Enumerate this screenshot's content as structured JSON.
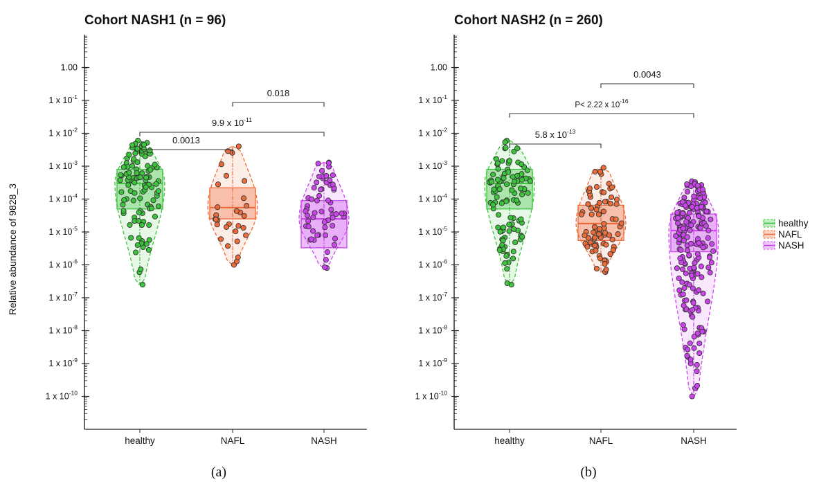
{
  "ylabel": "Relative abundance of 9828_3",
  "legend": [
    {
      "name": "healthy",
      "color": "#3cc43c"
    },
    {
      "name": "NAFL",
      "color": "#ee6c3a"
    },
    {
      "name": "NASH",
      "color": "#cc44ee"
    }
  ],
  "chart_data": [
    {
      "type": "box-violin-swarm",
      "title": "Cohort NASH1 (n = 96)",
      "panel_label": "(a)",
      "scale": "log",
      "ylim": [
        1e-11,
        10.0
      ],
      "yticks": [
        {
          "value": 1,
          "mantissa": "1.00",
          "exp": ""
        },
        {
          "value": 0.1,
          "mantissa": "1 x 10",
          "exp": "-1"
        },
        {
          "value": 0.01,
          "mantissa": "1 x 10",
          "exp": "-2"
        },
        {
          "value": 0.001,
          "mantissa": "1 x 10",
          "exp": "-3"
        },
        {
          "value": 0.0001,
          "mantissa": "1 x 10",
          "exp": "-4"
        },
        {
          "value": 1e-05,
          "mantissa": "1 x 10",
          "exp": "-5"
        },
        {
          "value": 1e-06,
          "mantissa": "1 x 10",
          "exp": "-6"
        },
        {
          "value": 1e-07,
          "mantissa": "1 x 10",
          "exp": "-7"
        },
        {
          "value": 1e-08,
          "mantissa": "1 x 10",
          "exp": "-8"
        },
        {
          "value": 1e-09,
          "mantissa": "1 x 10",
          "exp": "-9"
        },
        {
          "value": 1e-10,
          "mantissa": "1 x 10",
          "exp": "-10"
        }
      ],
      "categories": [
        "healthy",
        "NAFL",
        "NASH"
      ],
      "groups": [
        {
          "category": "healthy",
          "n_points": 110,
          "min": 2.5e-07,
          "max": 0.006,
          "q1": 5e-05,
          "median": 0.0003,
          "q3": 0.0008
        },
        {
          "category": "NAFL",
          "n_points": 30,
          "min": 1e-06,
          "max": 0.004,
          "q1": 2.5e-05,
          "median": 5.5e-05,
          "q3": 0.00022
        },
        {
          "category": "NASH",
          "n_points": 60,
          "min": 8e-07,
          "max": 0.0013,
          "q1": 3.3e-06,
          "median": 2.5e-05,
          "q3": 9e-05
        }
      ],
      "comparisons": [
        {
          "from": "healthy",
          "to": "NAFL",
          "p_label": "0.0013",
          "p_mantissa": "",
          "p_exp": ""
        },
        {
          "from": "healthy",
          "to": "NASH",
          "p_label": "",
          "p_mantissa": "9.9 x 10",
          "p_exp": "-11"
        },
        {
          "from": "NAFL",
          "to": "NASH",
          "p_label": "0.018",
          "p_mantissa": "",
          "p_exp": ""
        }
      ]
    },
    {
      "type": "box-violin-swarm",
      "title": "Cohort NASH2 (n = 260)",
      "panel_label": "(b)",
      "scale": "log",
      "ylim": [
        1e-11,
        10.0
      ],
      "yticks": [
        {
          "value": 1,
          "mantissa": "1.00",
          "exp": ""
        },
        {
          "value": 0.1,
          "mantissa": "1 x 10",
          "exp": "-1"
        },
        {
          "value": 0.01,
          "mantissa": "1 x 10",
          "exp": "-2"
        },
        {
          "value": 0.001,
          "mantissa": "1 x 10",
          "exp": "-3"
        },
        {
          "value": 0.0001,
          "mantissa": "1 x 10",
          "exp": "-4"
        },
        {
          "value": 1e-05,
          "mantissa": "1 x 10",
          "exp": "-5"
        },
        {
          "value": 1e-06,
          "mantissa": "1 x 10",
          "exp": "-6"
        },
        {
          "value": 1e-07,
          "mantissa": "1 x 10",
          "exp": "-7"
        },
        {
          "value": 1e-08,
          "mantissa": "1 x 10",
          "exp": "-8"
        },
        {
          "value": 1e-09,
          "mantissa": "1 x 10",
          "exp": "-9"
        },
        {
          "value": 1e-10,
          "mantissa": "1 x 10",
          "exp": "-10"
        }
      ],
      "categories": [
        "healthy",
        "NAFL",
        "NASH"
      ],
      "groups": [
        {
          "category": "healthy",
          "n_points": 110,
          "min": 2.5e-07,
          "max": 0.006,
          "q1": 5e-05,
          "median": 0.0003,
          "q3": 0.0008
        },
        {
          "category": "NAFL",
          "n_points": 80,
          "min": 6e-07,
          "max": 0.0009,
          "q1": 5.5e-06,
          "median": 1.8e-05,
          "q3": 6.5e-05
        },
        {
          "category": "NASH",
          "n_points": 200,
          "min": 1e-10,
          "max": 0.00035,
          "q1": 2.5e-06,
          "median": 1.1e-05,
          "q3": 3.5e-05
        }
      ],
      "comparisons": [
        {
          "from": "healthy",
          "to": "NAFL",
          "p_label": "",
          "p_mantissa": "5.8 x 10",
          "p_exp": "-13"
        },
        {
          "from": "healthy",
          "to": "NASH",
          "p_label": "",
          "p_mantissa": "P< 2.22 x 10",
          "p_exp": "-16"
        },
        {
          "from": "NAFL",
          "to": "NASH",
          "p_label": "0.0043",
          "p_mantissa": "",
          "p_exp": ""
        }
      ]
    }
  ]
}
